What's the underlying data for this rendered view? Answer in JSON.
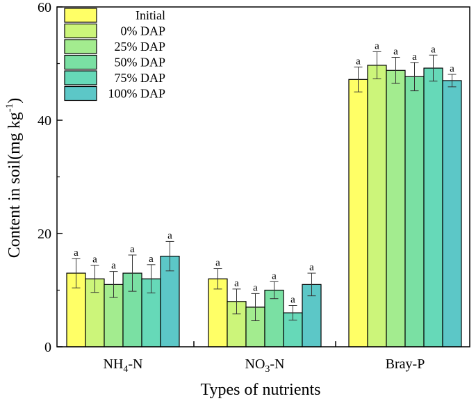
{
  "chart_data": {
    "type": "bar",
    "title": "",
    "xlabel": "Types of nutrients",
    "ylabel": {
      "main": "Content in soil(mg kg",
      "superscript": "-1",
      "close": ")"
    },
    "ylim": [
      0,
      60
    ],
    "yticks": [
      "0",
      "20",
      "40",
      "60"
    ],
    "categories": [
      {
        "base": "NH",
        "sub": "4",
        "rest": "-N"
      },
      {
        "base": "NO",
        "sub": "3",
        "rest": "-N"
      },
      {
        "base": "Bray-P",
        "sub": "",
        "rest": ""
      }
    ],
    "legend_position": "top-left",
    "series": [
      {
        "name": "Initial",
        "color": "#ffff66",
        "values": [
          13.0,
          12.0,
          47.2
        ],
        "errors": [
          2.6,
          1.8,
          2.2
        ],
        "labels": [
          "a",
          "a",
          "a"
        ]
      },
      {
        "name": "0% DAP",
        "color": "#ccf57a",
        "values": [
          12.0,
          8.0,
          49.7
        ],
        "errors": [
          2.4,
          2.2,
          2.4
        ],
        "labels": [
          "a",
          "a",
          "a"
        ]
      },
      {
        "name": "25% DAP",
        "color": "#a3ec8f",
        "values": [
          11.0,
          7.0,
          48.8
        ],
        "errors": [
          2.3,
          2.4,
          2.3
        ],
        "labels": [
          "a",
          "a",
          "a"
        ]
      },
      {
        "name": "50% DAP",
        "color": "#7ae0a3",
        "values": [
          13.0,
          10.0,
          47.7
        ],
        "errors": [
          3.2,
          1.5,
          2.5
        ],
        "labels": [
          "a",
          "a",
          "a"
        ]
      },
      {
        "name": "75% DAP",
        "color": "#66d9b8",
        "values": [
          12.0,
          6.0,
          49.2
        ],
        "errors": [
          2.5,
          1.3,
          2.3
        ],
        "labels": [
          "a",
          "a",
          "a"
        ]
      },
      {
        "name": "100% DAP",
        "color": "#5cc7c7",
        "values": [
          16.0,
          11.0,
          47.0
        ],
        "errors": [
          2.6,
          2.0,
          1.1
        ],
        "labels": [
          "a",
          "a",
          "a"
        ]
      }
    ]
  }
}
